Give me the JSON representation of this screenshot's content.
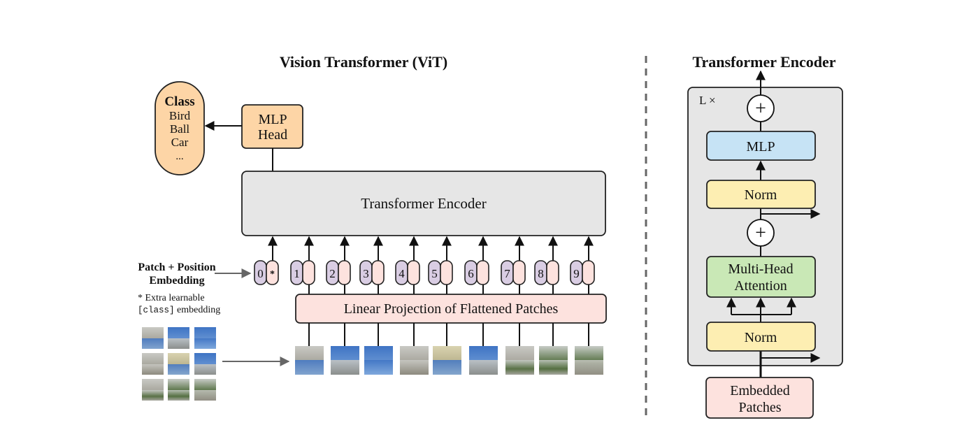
{
  "vit": {
    "title": "Vision Transformer (ViT)",
    "class_box": {
      "heading": "Class",
      "items": [
        "Bird",
        "Ball",
        "Car",
        "..."
      ]
    },
    "mlp_head": [
      "MLP",
      "Head"
    ],
    "encoder_label": "Transformer Encoder",
    "embedding_label": [
      "Patch + Position",
      "Embedding"
    ],
    "extra_note": {
      "line1": "* Extra learnable",
      "code": "[class]",
      "rest": " embedding"
    },
    "tokens": [
      "0",
      "1",
      "2",
      "3",
      "4",
      "5",
      "6",
      "7",
      "8",
      "9"
    ],
    "class_token_mark": "*",
    "projection_label": "Linear Projection of Flattened Patches"
  },
  "encoder_detail": {
    "title": "Transformer Encoder",
    "repeat_label": "L ×",
    "plus_symbol": "+",
    "mlp": "MLP",
    "norm": "Norm",
    "attention": [
      "Multi-Head",
      "Attention"
    ],
    "input": [
      "Embedded",
      "Patches"
    ]
  },
  "colors": {
    "class_fill": "#fdd5a6",
    "encoder_fill": "#e6e6e6",
    "token_position": "#d9cde3",
    "token_patch": "#fde2de",
    "projection_fill": "#fde2de",
    "mlp_fill": "#c6e3f5",
    "norm_fill": "#fdeeb2",
    "attention_fill": "#c9e8b6"
  }
}
